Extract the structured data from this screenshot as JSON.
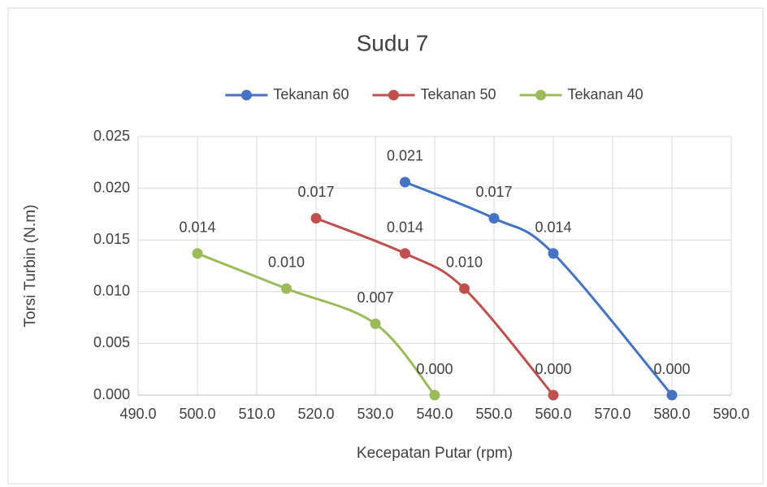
{
  "chart_data": {
    "type": "scatter",
    "title": "Sudu 7",
    "xlabel": "Kecepatan Putar (rpm)",
    "ylabel": "Torsi Turbin (N.m)",
    "legend": "top",
    "grid": true,
    "smooth": true,
    "series": [
      {
        "name": "Tekanan 60",
        "color": "#4472c4",
        "x": [
          535,
          550,
          560,
          580
        ],
        "values": [
          0.0206,
          0.0171,
          0.0137,
          0
        ],
        "value_labels": [
          "0.021",
          "0.017",
          "0.014",
          "0.000"
        ]
      },
      {
        "name": "Tekanan 50",
        "color": "#c0504d",
        "x": [
          520,
          535,
          545,
          560
        ],
        "values": [
          0.0171,
          0.0137,
          0.0103,
          0
        ],
        "value_labels": [
          "0.017",
          "0.014",
          "0.010",
          "0.000"
        ]
      },
      {
        "name": "Tekanan 40",
        "color": "#9bbb59",
        "x": [
          500,
          515,
          530,
          540
        ],
        "values": [
          0.0137,
          0.0103,
          0.0069,
          0
        ],
        "value_labels": [
          "0.014",
          "0.010",
          "0.007",
          "0.000"
        ]
      }
    ],
    "xlim": [
      490,
      590
    ],
    "xticks": [
      {
        "value": 490,
        "label": "490.0"
      },
      {
        "value": 500,
        "label": "500.0"
      },
      {
        "value": 510,
        "label": "510.0"
      },
      {
        "value": 520,
        "label": "520.0"
      },
      {
        "value": 530,
        "label": "530.0"
      },
      {
        "value": 540,
        "label": "540.0"
      },
      {
        "value": 550,
        "label": "550.0"
      },
      {
        "value": 560,
        "label": "560.0"
      },
      {
        "value": 570,
        "label": "570.0"
      },
      {
        "value": 580,
        "label": "580.0"
      },
      {
        "value": 590,
        "label": "590.0"
      }
    ],
    "ylim": [
      0,
      0.025
    ],
    "yticks": [
      {
        "value": 0,
        "label": "0.000"
      },
      0.005,
      {
        "value": 0.01,
        "label": "0.010"
      },
      0.015,
      {
        "value": 0.02,
        "label": "0.020"
      },
      0.025
    ]
  }
}
